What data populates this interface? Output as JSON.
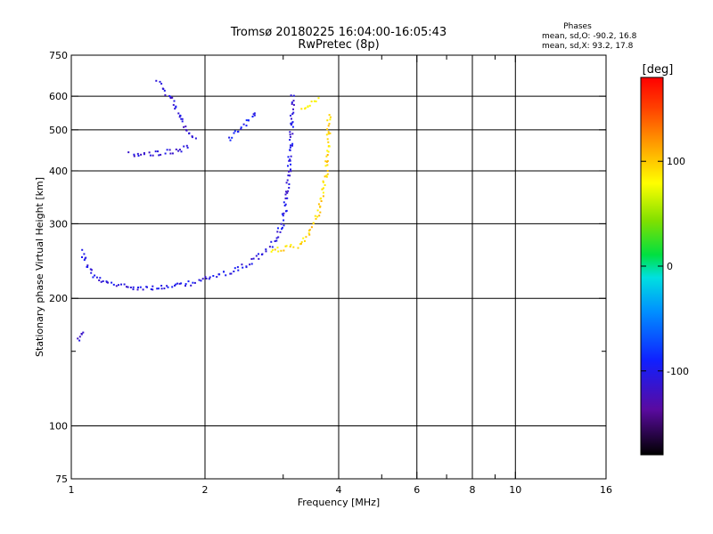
{
  "chart_data": {
    "type": "scatter",
    "title": "Tromsø 20180225 16:04:00-16:05:43",
    "subtitle": "RwPretec (8p)",
    "xlabel": "Frequency [MHz]",
    "ylabel": "Stationary phase Virtual Height [km]",
    "xscale": "log",
    "yscale": "log",
    "xlim": [
      1,
      16
    ],
    "ylim": [
      75,
      750
    ],
    "xticks": [
      {
        "value": 1,
        "label": "1"
      },
      {
        "value": 2,
        "label": "2"
      },
      {
        "value": 4,
        "label": "4"
      },
      {
        "value": 6,
        "label": "6"
      },
      {
        "value": 8,
        "label": "8"
      },
      {
        "value": 10,
        "label": "10"
      },
      {
        "value": 16,
        "label": "16"
      }
    ],
    "xgrid": [
      2,
      4,
      6,
      8,
      10
    ],
    "xminor": [
      3,
      5,
      7,
      9
    ],
    "yticks": [
      {
        "value": 75,
        "label": "75"
      },
      {
        "value": 100,
        "label": "100"
      },
      {
        "value": 200,
        "label": "200"
      },
      {
        "value": 300,
        "label": "300"
      },
      {
        "value": 400,
        "label": "400"
      },
      {
        "value": 500,
        "label": "500"
      },
      {
        "value": 600,
        "label": "600"
      },
      {
        "value": 750,
        "label": "750"
      }
    ],
    "ygrid": [
      100,
      200,
      300,
      400,
      500,
      600
    ],
    "yminor": [
      150
    ],
    "grid": true,
    "legend": {
      "title": "Phases",
      "lines": [
        "mean, sd,O: -90.2, 16.8",
        "mean, sd,X:  93.2, 17.8"
      ],
      "placement": "top-right"
    },
    "colorbar": {
      "label": "[deg]",
      "range": [
        -180,
        180
      ],
      "ticks": [
        {
          "value": 100,
          "label": "100"
        },
        {
          "value": 0,
          "label": "0"
        },
        {
          "value": -100,
          "label": "-100"
        }
      ],
      "placement": "right"
    },
    "series": [
      {
        "name": "O",
        "description_traces": [
          {
            "phase": -105,
            "points": [
              [
                1.05,
                260
              ],
              [
                1.08,
                240
              ],
              [
                1.12,
                225
              ],
              [
                1.2,
                218
              ],
              [
                1.3,
                215
              ],
              [
                1.45,
                213
              ],
              [
                1.6,
                213
              ],
              [
                1.75,
                215
              ],
              [
                1.9,
                220
              ],
              [
                2.05,
                225
              ],
              [
                2.2,
                230
              ],
              [
                2.35,
                235
              ],
              [
                2.5,
                243
              ],
              [
                2.6,
                250
              ],
              [
                2.7,
                258
              ],
              [
                2.8,
                268
              ],
              [
                2.9,
                282
              ],
              [
                2.97,
                300
              ],
              [
                3.02,
                330
              ],
              [
                3.06,
                360
              ],
              [
                3.08,
                400
              ],
              [
                3.1,
                450
              ],
              [
                3.12,
                500
              ],
              [
                3.13,
                550
              ],
              [
                3.14,
                610
              ]
            ]
          },
          {
            "phase": -110,
            "points": [
              [
                1.35,
                440
              ],
              [
                1.45,
                440
              ],
              [
                1.55,
                442
              ],
              [
                1.65,
                445
              ],
              [
                1.75,
                450
              ],
              [
                1.85,
                460
              ]
            ]
          },
          {
            "phase": -100,
            "points": [
              [
                2.25,
                480
              ],
              [
                2.35,
                500
              ],
              [
                2.45,
                520
              ],
              [
                2.55,
                540
              ],
              [
                2.62,
                555
              ]
            ]
          },
          {
            "phase": -110,
            "points": [
              [
                1.55,
                650
              ],
              [
                1.62,
                620
              ],
              [
                1.68,
                590
              ],
              [
                1.72,
                560
              ],
              [
                1.78,
                520
              ],
              [
                1.82,
                500
              ],
              [
                1.9,
                470
              ]
            ]
          },
          {
            "phase": -105,
            "points": [
              [
                1.03,
                160
              ],
              [
                1.05,
                165
              ],
              [
                1.06,
                170
              ]
            ]
          }
        ]
      },
      {
        "name": "X",
        "description_traces": [
          {
            "phase": 95,
            "points": [
              [
                2.8,
                262
              ],
              [
                2.95,
                262
              ],
              [
                3.1,
                264
              ],
              [
                3.25,
                268
              ],
              [
                3.38,
                280
              ],
              [
                3.5,
                300
              ],
              [
                3.6,
                325
              ],
              [
                3.68,
                360
              ],
              [
                3.73,
                400
              ],
              [
                3.76,
                450
              ],
              [
                3.78,
                500
              ],
              [
                3.79,
                550
              ]
            ]
          },
          {
            "phase": 80,
            "points": [
              [
                3.3,
                560
              ],
              [
                3.45,
                580
              ],
              [
                3.6,
                600
              ]
            ]
          }
        ]
      }
    ]
  }
}
